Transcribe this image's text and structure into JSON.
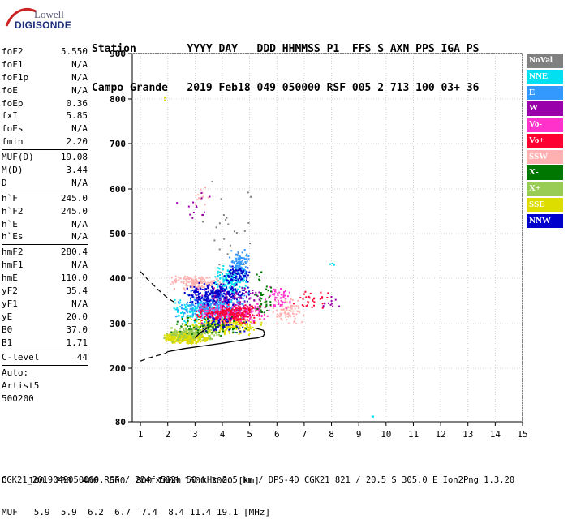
{
  "logo": {
    "line1": "Lowell",
    "line2": "DIGISONDE"
  },
  "header": {
    "line1": "Station        YYYY DAY   DDD HHMMSS P1  FFS S AXN PPS IGA PS",
    "line2": "Campo Grande   2019 Feb18 049 050000 RSF 005 2 713 100 03+ 36"
  },
  "params": [
    {
      "k": "foF2",
      "v": "5.550"
    },
    {
      "k": "foF1",
      "v": "N/A"
    },
    {
      "k": "foF1p",
      "v": "N/A"
    },
    {
      "k": "foE",
      "v": "N/A"
    },
    {
      "k": "foEp",
      "v": "0.36"
    },
    {
      "k": "fxI",
      "v": "5.85"
    },
    {
      "k": "foEs",
      "v": "N/A"
    },
    {
      "k": "fmin",
      "v": "2.20"
    },
    {
      "k": "MUF(D)",
      "v": "19.08",
      "sep": true
    },
    {
      "k": "M(D)",
      "v": "3.44"
    },
    {
      "k": "D",
      "v": "N/A"
    },
    {
      "k": "h`F",
      "v": "245.0",
      "sep": true
    },
    {
      "k": "h`F2",
      "v": "245.0"
    },
    {
      "k": "h`E",
      "v": "N/A"
    },
    {
      "k": "h`Es",
      "v": "N/A"
    },
    {
      "k": "hmF2",
      "v": "280.4",
      "sep": true
    },
    {
      "k": "hmF1",
      "v": "N/A"
    },
    {
      "k": "hmE",
      "v": "110.0"
    },
    {
      "k": "yF2",
      "v": "35.4"
    },
    {
      "k": "yF1",
      "v": "N/A"
    },
    {
      "k": "yE",
      "v": "20.0"
    },
    {
      "k": "B0",
      "v": "37.0"
    },
    {
      "k": "B1",
      "v": "1.71"
    },
    {
      "k": "C-level",
      "v": "44",
      "sep": true
    }
  ],
  "autoscaling": {
    "line1": "Auto:",
    "line2": "Artist5",
    "line3": "500200"
  },
  "legend": [
    {
      "label": "NoVal",
      "color": "#808080"
    },
    {
      "label": "NNE",
      "color": "#00e0f0"
    },
    {
      "label": "E",
      "color": "#3399ff"
    },
    {
      "label": "W",
      "color": "#9900aa"
    },
    {
      "label": "Vo-",
      "color": "#ff33cc"
    },
    {
      "label": "Vo+",
      "color": "#ff0033"
    },
    {
      "label": "SSW",
      "color": "#ffb0b0"
    },
    {
      "label": "X-",
      "color": "#007700"
    },
    {
      "label": "X+",
      "color": "#99cc55"
    },
    {
      "label": "SSE",
      "color": "#dddd00"
    },
    {
      "label": "NNW",
      "color": "#0000cc"
    }
  ],
  "footer": {
    "line1": "D    100  200  400  600  800 1000 1500 3000 [km]",
    "line2": "MUF   5.9  5.9  6.2  6.7  7.4  8.4 11.4 19.1 [MHz]",
    "line3": "CGK21_2019049050000.RSF / 284fx512h 50 kHz 2.5 km / DPS-4D CGK21 821 / 20.5 S 305.0 E Ion2Png 1.3.20"
  },
  "chart_data": {
    "type": "scatter",
    "xlabel": "",
    "ylabel": "",
    "xlim": [
      0.7,
      15
    ],
    "ylim": [
      80,
      900
    ],
    "xticks": [
      1,
      2,
      3,
      4,
      5,
      6,
      7,
      8,
      9,
      10,
      11,
      12,
      13,
      14,
      15
    ],
    "yticks": [
      80,
      200,
      300,
      400,
      500,
      600,
      700,
      800,
      900
    ],
    "grid": true,
    "series": [
      {
        "name": "SSE",
        "color": "#dddd00",
        "clusters": [
          {
            "x": [
              1.8,
              3.5
            ],
            "y": [
              255,
              285
            ],
            "n": 380
          },
          {
            "x": [
              2.5,
              5.5
            ],
            "y": [
              275,
              320
            ],
            "n": 260
          },
          {
            "x": [
              1.8,
              1.9
            ],
            "y": [
              790,
              810
            ],
            "n": 3
          }
        ]
      },
      {
        "name": "X+",
        "color": "#99cc55",
        "clusters": [
          {
            "x": [
              1.8,
              4.0
            ],
            "y": [
              260,
              300
            ],
            "n": 170
          }
        ]
      },
      {
        "name": "NNE",
        "color": "#00e0f0",
        "clusters": [
          {
            "x": [
              2.0,
              4.8
            ],
            "y": [
              300,
              360
            ],
            "n": 220
          },
          {
            "x": [
              3.5,
              5.0
            ],
            "y": [
              360,
              430
            ],
            "n": 150
          },
          {
            "x": [
              7.8,
              8.2
            ],
            "y": [
              428,
              438
            ],
            "n": 4
          },
          {
            "x": [
              9.4,
              9.6
            ],
            "y": [
              92,
              95
            ],
            "n": 3
          }
        ]
      },
      {
        "name": "E",
        "color": "#3399ff",
        "clusters": [
          {
            "x": [
              2.2,
              5.0
            ],
            "y": [
              310,
              380
            ],
            "n": 260
          },
          {
            "x": [
              4.2,
              5.0
            ],
            "y": [
              390,
              470
            ],
            "n": 120
          }
        ]
      },
      {
        "name": "SSW",
        "color": "#ffb0b0",
        "clusters": [
          {
            "x": [
              2.0,
              4.0
            ],
            "y": [
              375,
              410
            ],
            "n": 160
          },
          {
            "x": [
              5.8,
              7.0
            ],
            "y": [
              300,
              360
            ],
            "n": 80
          },
          {
            "x": [
              2.8,
              3.5
            ],
            "y": [
              540,
              620
            ],
            "n": 15
          }
        ]
      },
      {
        "name": "W",
        "color": "#9900aa",
        "clusters": [
          {
            "x": [
              2.8,
              5.5
            ],
            "y": [
              320,
              390
            ],
            "n": 120
          },
          {
            "x": [
              7.5,
              8.3
            ],
            "y": [
              330,
              370
            ],
            "n": 12
          },
          {
            "x": [
              2.0,
              3.8
            ],
            "y": [
              500,
              610
            ],
            "n": 14
          }
        ]
      },
      {
        "name": "Vo-",
        "color": "#ff33cc",
        "clusters": [
          {
            "x": [
              3.0,
              5.8
            ],
            "y": [
              300,
              350
            ],
            "n": 200
          },
          {
            "x": [
              5.5,
              6.5
            ],
            "y": [
              330,
              390
            ],
            "n": 50
          }
        ]
      },
      {
        "name": "Vo+",
        "color": "#ff0033",
        "clusters": [
          {
            "x": [
              2.8,
              5.6
            ],
            "y": [
              300,
              345
            ],
            "n": 220
          },
          {
            "x": [
              6.5,
              8.0
            ],
            "y": [
              330,
              380
            ],
            "n": 30
          }
        ]
      },
      {
        "name": "NNW",
        "color": "#0000cc",
        "clusters": [
          {
            "x": [
              2.5,
              5.0
            ],
            "y": [
              340,
              395
            ],
            "n": 200
          },
          {
            "x": [
              4.0,
              5.0
            ],
            "y": [
              390,
              430
            ],
            "n": 70
          },
          {
            "x": [
              2.8,
              5.0
            ],
            "y": [
              280,
              320
            ],
            "n": 60
          }
        ]
      },
      {
        "name": "X-",
        "color": "#007700",
        "clusters": [
          {
            "x": [
              2.0,
              5.0
            ],
            "y": [
              270,
              320
            ],
            "n": 60
          },
          {
            "x": [
              5.0,
              5.8
            ],
            "y": [
              300,
              420
            ],
            "n": 40
          }
        ]
      },
      {
        "name": "NoVal",
        "color": "#808080",
        "clusters": [
          {
            "x": [
              3.0,
              5.3
            ],
            "y": [
              380,
              640
            ],
            "n": 25
          }
        ]
      }
    ],
    "profile_solid": {
      "x": [
        2.0,
        2.6,
        3.3,
        4.0,
        4.6,
        5.0,
        5.3,
        5.5,
        5.55,
        5.5,
        5.2
      ],
      "y": [
        237,
        244,
        250,
        256,
        262,
        266,
        268,
        272,
        278,
        285,
        290
      ]
    },
    "profile_dashed_lower": {
      "x": [
        1.0,
        1.3,
        1.6,
        1.9,
        2.0
      ],
      "y": [
        216,
        223,
        228,
        233,
        237
      ]
    },
    "profile_dashed_upper": {
      "x": [
        1.0,
        1.3,
        1.7,
        2.0,
        2.3
      ],
      "y": [
        415,
        395,
        372,
        356,
        345
      ]
    },
    "profile_mid": {
      "x": [
        3.0,
        3.2,
        3.5
      ],
      "y": [
        268,
        280,
        292
      ]
    }
  }
}
